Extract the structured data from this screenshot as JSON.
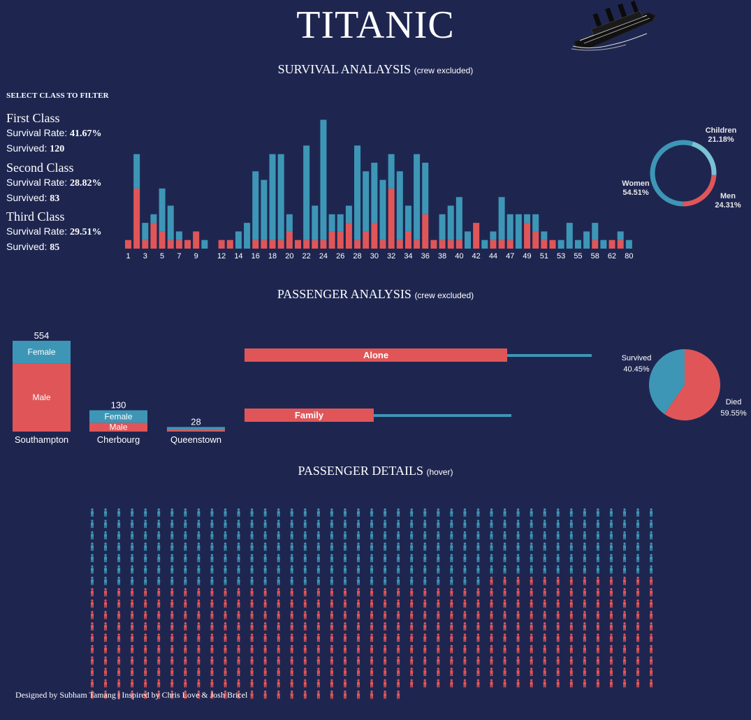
{
  "header": {
    "title": "TITANIC",
    "survival_section": {
      "title": "SURVIVAL ANALAYSIS",
      "subtitle": "(crew excluded)"
    },
    "passenger_section": {
      "title": "PASSENGER ANALYSIS",
      "subtitle": "(crew excluded)"
    },
    "details_section": {
      "title": "PASSENGER DETAILS",
      "subtitle": "(hover)"
    }
  },
  "filter": {
    "label": "SELECT CLASS TO FILTER",
    "classes": [
      {
        "name": "First Class",
        "rate_label": "Survival Rate:",
        "rate": "41.67%",
        "survived_label": "Survived:",
        "survived": "120"
      },
      {
        "name": "Second Class",
        "rate_label": "Survival Rate:",
        "rate": "28.82%",
        "survived_label": "Survived:",
        "survived": "83"
      },
      {
        "name": "Third Class",
        "rate_label": "Survival Rate:",
        "rate": "29.51%",
        "survived_label": "Survived:",
        "survived": "85"
      }
    ]
  },
  "colors": {
    "background": "#1e2650",
    "survived": "#3e96b6",
    "died": "#e05658",
    "light_teal": "#79c3d4"
  },
  "chart_data": [
    {
      "type": "bar",
      "stacked": true,
      "categories": [
        "1",
        "2",
        "3",
        "4",
        "5",
        "6",
        "7",
        "8",
        "9",
        "10",
        "11",
        "12",
        "13",
        "14",
        "15",
        "16",
        "17",
        "18",
        "19",
        "20",
        "21",
        "22",
        "23",
        "24",
        "25",
        "26",
        "27",
        "28",
        "29",
        "30",
        "31",
        "32",
        "33",
        "34",
        "35",
        "36",
        "37",
        "38",
        "39",
        "40",
        "41",
        "42",
        "43",
        "44",
        "45",
        "47",
        "48",
        "49",
        "50",
        "51",
        "52",
        "53",
        "54",
        "55",
        "56",
        "58",
        "60",
        "62",
        "64",
        "80"
      ],
      "tick_labels": [
        "1",
        "3",
        "5",
        "7",
        "9",
        "12",
        "14",
        "16",
        "18",
        "20",
        "22",
        "24",
        "26",
        "28",
        "30",
        "32",
        "34",
        "36",
        "38",
        "40",
        "42",
        "44",
        "47",
        "49",
        "51",
        "53",
        "55",
        "58",
        "62",
        "80"
      ],
      "series": [
        {
          "values": [
            1,
            7,
            1,
            3,
            2,
            1,
            1,
            1,
            2,
            0,
            0,
            1,
            1,
            0,
            0,
            1,
            1,
            1,
            1,
            2,
            1,
            1,
            1,
            1,
            2,
            2,
            3,
            1,
            2,
            3,
            1,
            7,
            1,
            2,
            1,
            4,
            1,
            1,
            1,
            1,
            0,
            3,
            0,
            1,
            1,
            1,
            0,
            3,
            2,
            1,
            1,
            0,
            0,
            0,
            0,
            1,
            0,
            1,
            1,
            0
          ]
        },
        {
          "values": [
            0,
            4,
            2,
            1,
            5,
            4,
            1,
            0,
            0,
            1,
            0,
            0,
            0,
            2,
            3,
            8,
            7,
            10,
            10,
            2,
            0,
            11,
            4,
            14,
            2,
            2,
            2,
            11,
            7,
            7,
            7,
            4,
            8,
            3,
            10,
            6,
            0,
            3,
            4,
            5,
            2,
            0,
            1,
            1,
            5,
            3,
            4,
            1,
            2,
            1,
            0,
            1,
            3,
            1,
            2,
            2,
            1,
            0,
            1,
            1
          ]
        }
      ],
      "xlabel": "",
      "ylabel": ""
    },
    {
      "type": "pie",
      "variant": "donut",
      "labels": [
        "Children",
        "Men",
        "Women"
      ],
      "values": [
        21.18,
        24.31,
        54.51
      ],
      "value_labels": [
        "21.18%",
        "24.31%",
        "54.51%"
      ]
    },
    {
      "type": "bar",
      "stacked": true,
      "categories": [
        "Southampton",
        "Cherbourg",
        "Queenstown"
      ],
      "totals": [
        "554",
        "130",
        "28"
      ],
      "series": [
        {
          "name": "Male",
          "values": [
            417,
            54,
            11
          ]
        },
        {
          "name": "Female",
          "values": [
            137,
            76,
            17
          ]
        }
      ]
    },
    {
      "type": "bar",
      "orientation": "horizontal",
      "categories": [
        "Alone",
        "Family"
      ],
      "series": [
        {
          "values": [
            376,
            185
          ]
        },
        {
          "values": [
            497,
            382
          ]
        }
      ]
    },
    {
      "type": "pie",
      "labels": [
        "Survived",
        "Died"
      ],
      "values": [
        40.45,
        59.55
      ],
      "value_labels": [
        "40.45%",
        "59.55%"
      ]
    }
  ],
  "details": {
    "columns": 43,
    "survived_count": 288,
    "died_count": 424,
    "icon": "person-icon"
  },
  "footer": {
    "text": "Designed by Subham Tamang | Inspired by Chris Love & Josh Bricel"
  }
}
